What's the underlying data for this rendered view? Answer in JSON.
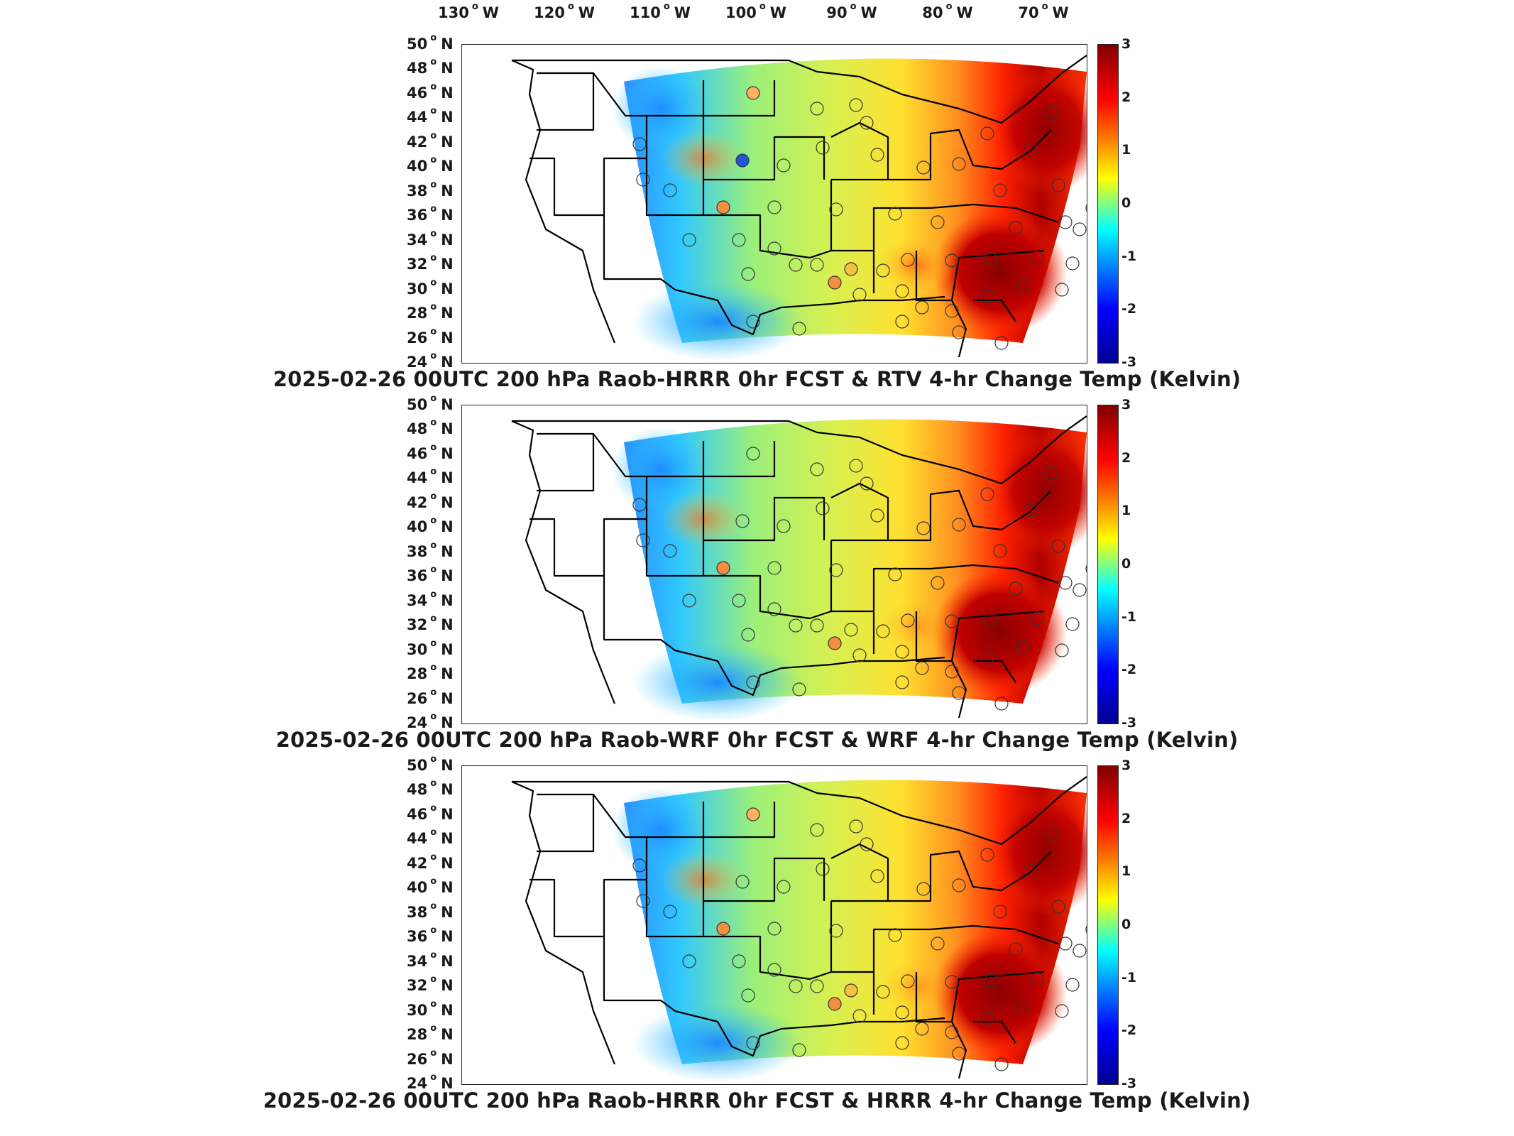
{
  "longitude_labels": [
    {
      "deg": "130",
      "hemi": "W"
    },
    {
      "deg": "120",
      "hemi": "W"
    },
    {
      "deg": "110",
      "hemi": "W"
    },
    {
      "deg": "100",
      "hemi": "W"
    },
    {
      "deg": "90",
      "hemi": "W"
    },
    {
      "deg": "80",
      "hemi": "W"
    },
    {
      "deg": "70",
      "hemi": "W"
    }
  ],
  "latitude_labels": [
    {
      "deg": "50",
      "hemi": "N"
    },
    {
      "deg": "48",
      "hemi": "N"
    },
    {
      "deg": "46",
      "hemi": "N"
    },
    {
      "deg": "44",
      "hemi": "N"
    },
    {
      "deg": "42",
      "hemi": "N"
    },
    {
      "deg": "40",
      "hemi": "N"
    },
    {
      "deg": "38",
      "hemi": "N"
    },
    {
      "deg": "36",
      "hemi": "N"
    },
    {
      "deg": "34",
      "hemi": "N"
    },
    {
      "deg": "32",
      "hemi": "N"
    },
    {
      "deg": "30",
      "hemi": "N"
    },
    {
      "deg": "28",
      "hemi": "N"
    },
    {
      "deg": "26",
      "hemi": "N"
    },
    {
      "deg": "24",
      "hemi": "N"
    }
  ],
  "colorbar": {
    "ticks": [
      "3",
      "2",
      "1",
      "0",
      "-1",
      "-2",
      "-3"
    ],
    "colors": [
      "#800000",
      "#ff0000",
      "#ff8000",
      "#ffff00",
      "#80ff80",
      "#00ffff",
      "#0080ff",
      "#0000ff",
      "#000090"
    ]
  },
  "panels": [
    {
      "title": "2025-02-26 00UTC 200 hPa Raob-HRRR 0hr FCST & RTV 4-hr Change Temp (Kelvin)"
    },
    {
      "title": "2025-02-26 00UTC 200 hPa Raob-WRF 0hr FCST & WRF 4-hr Change Temp (Kelvin)"
    },
    {
      "title": "2025-02-26 00UTC 200 hPa Raob-HRRR 0hr FCST & HRRR 4-hr Change Temp (Kelvin)"
    }
  ]
}
